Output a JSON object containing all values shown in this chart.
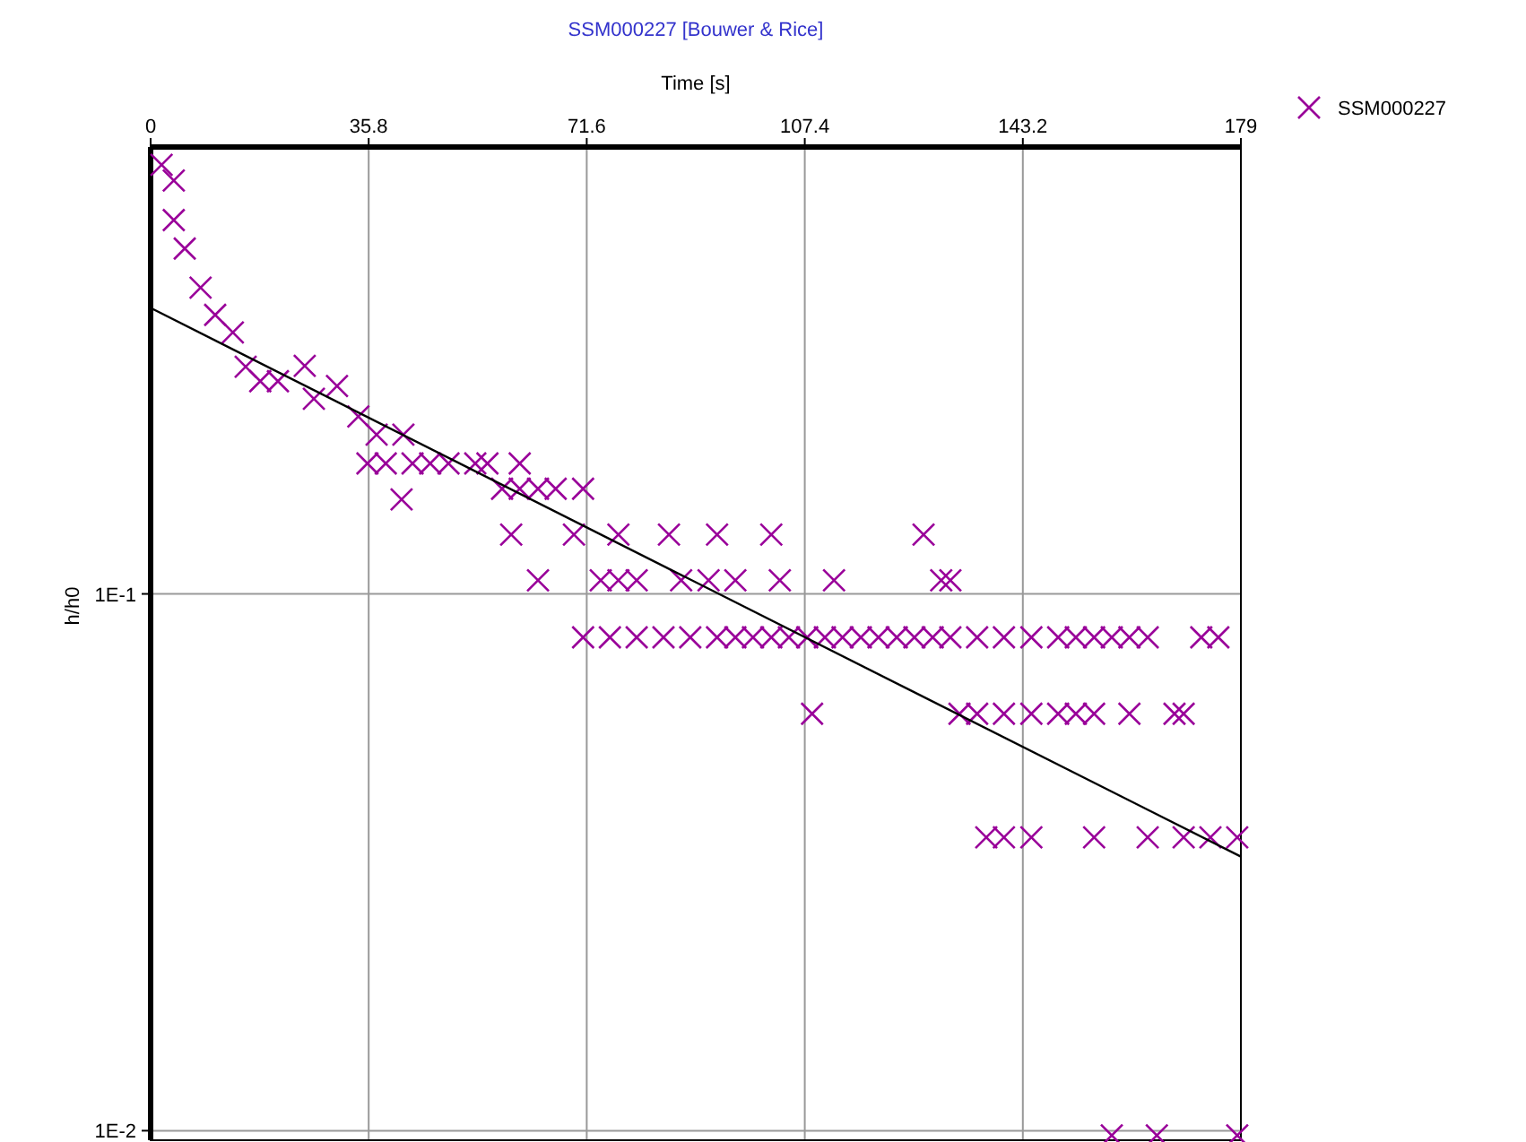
{
  "chart_data": {
    "type": "scatter",
    "title": "SSM000227 [Bouwer & Rice]",
    "xlabel": "Time [s]",
    "ylabel": "h/h0",
    "log": "y",
    "grid": true,
    "legend": "top right",
    "marker": "cross",
    "xlim": [
      0,
      179
    ],
    "xticks": [
      0,
      35.8,
      71.6,
      107.4,
      143.2,
      179
    ],
    "ylim": [
      0.0096,
      0.68
    ],
    "yticks": [
      {
        "value": 0.1,
        "label": "1E-1"
      },
      {
        "value": 0.01,
        "label": "1E-2"
      }
    ],
    "series": [
      {
        "name": "SSM000227",
        "color": "#990099",
        "x": [
          1.8,
          3.8,
          3.8,
          5.6,
          8.2,
          10.6,
          13.5,
          15.6,
          18,
          20.9,
          25.3,
          26.8,
          30.6,
          34.1,
          37.1,
          41.5,
          41.2,
          35.6,
          38.6,
          43.0,
          45.9,
          48.9,
          53.3,
          55.3,
          60.6,
          57.7,
          60.6,
          63.6,
          66.5,
          71.0,
          59.2,
          69.5,
          76.8,
          85.1,
          93.0,
          101.9,
          126.9,
          63.6,
          73.9,
          76.8,
          79.8,
          87.1,
          91.6,
          96.0,
          103.3,
          112.2,
          129.8,
          131.3,
          71.0,
          75.4,
          79.8,
          84.2,
          88.6,
          93.0,
          96.0,
          98.9,
          101.9,
          104.8,
          107.8,
          110.7,
          113.6,
          116.6,
          119.5,
          122.5,
          125.4,
          128.4,
          131.3,
          135.7,
          140.1,
          144.6,
          149.0,
          151.9,
          154.9,
          157.8,
          160.7,
          163.7,
          172.5,
          175.3,
          108.6,
          132.8,
          135.7,
          140.1,
          144.6,
          149.0,
          151.9,
          154.9,
          160.7,
          168.1,
          169.6,
          137.2,
          140.1,
          144.6,
          154.9,
          163.7,
          169.6,
          174.0,
          178.4,
          157.8,
          165.2,
          178.4
        ],
        "values": [
          0.63,
          0.589,
          0.497,
          0.44,
          0.372,
          0.331,
          0.307,
          0.265,
          0.249,
          0.249,
          0.266,
          0.231,
          0.244,
          0.214,
          0.198,
          0.198,
          0.15,
          0.175,
          0.175,
          0.175,
          0.175,
          0.175,
          0.175,
          0.175,
          0.175,
          0.157,
          0.157,
          0.157,
          0.157,
          0.157,
          0.129,
          0.129,
          0.129,
          0.129,
          0.129,
          0.129,
          0.129,
          0.106,
          0.106,
          0.106,
          0.106,
          0.106,
          0.106,
          0.106,
          0.106,
          0.106,
          0.106,
          0.106,
          0.083,
          0.083,
          0.083,
          0.083,
          0.083,
          0.083,
          0.083,
          0.083,
          0.083,
          0.083,
          0.083,
          0.083,
          0.083,
          0.083,
          0.083,
          0.083,
          0.083,
          0.083,
          0.083,
          0.083,
          0.083,
          0.083,
          0.083,
          0.083,
          0.083,
          0.083,
          0.083,
          0.083,
          0.083,
          0.083,
          0.0598,
          0.0598,
          0.0598,
          0.0598,
          0.0598,
          0.0598,
          0.0598,
          0.0598,
          0.0598,
          0.0598,
          0.0598,
          0.0352,
          0.0352,
          0.0352,
          0.0352,
          0.0352,
          0.0352,
          0.0352,
          0.0352,
          0.0098,
          0.0098,
          0.0098
        ]
      },
      {
        "color": "#000000",
        "type": "line",
        "marker": "none",
        "x": [
          0,
          179
        ],
        "values": [
          0.341,
          0.0324
        ]
      }
    ]
  }
}
